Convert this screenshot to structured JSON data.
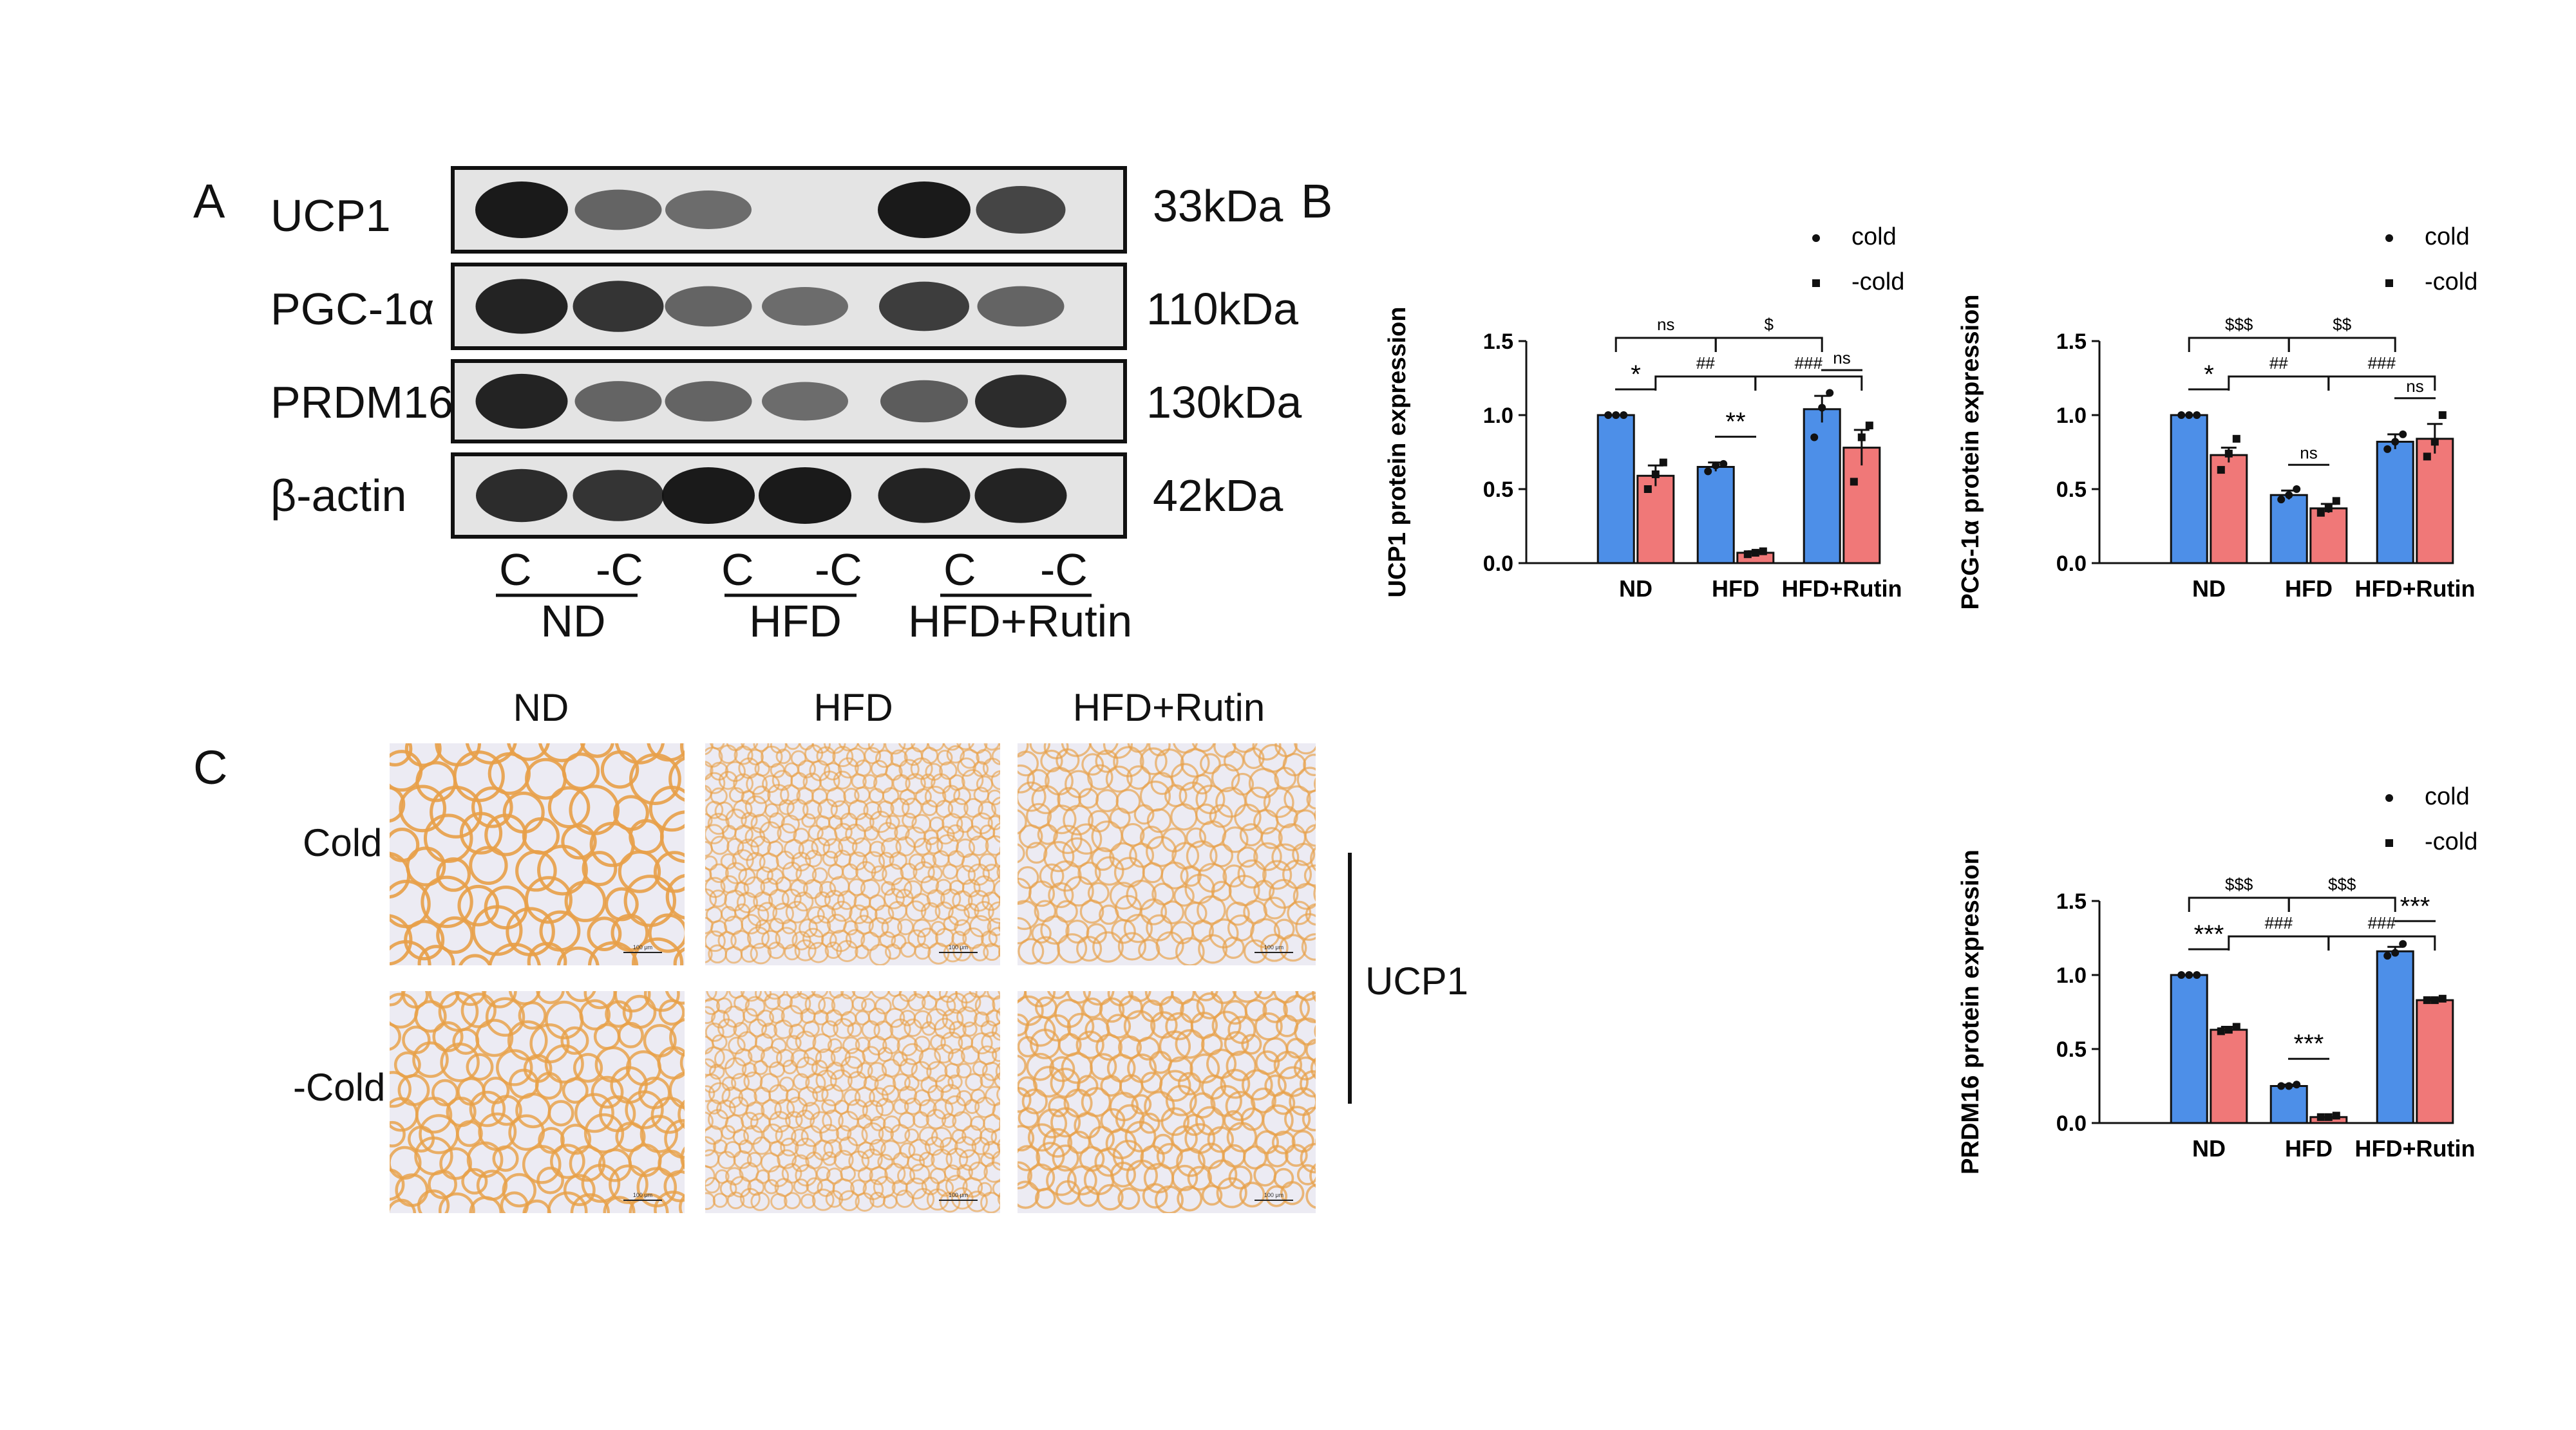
{
  "panels": {
    "a": "A",
    "b": "B",
    "c": "C"
  },
  "blot": {
    "rows": [
      {
        "name": "UCP1",
        "kda": "33kDa",
        "intensities": [
          1.0,
          0.55,
          0.5,
          0.0,
          1.0,
          0.75
        ]
      },
      {
        "name": "PGC-1α",
        "kda": "110kDa",
        "intensities": [
          0.95,
          0.85,
          0.55,
          0.5,
          0.8,
          0.55
        ]
      },
      {
        "name": "PRDM16",
        "kda": "130kDa",
        "intensities": [
          0.95,
          0.55,
          0.55,
          0.5,
          0.6,
          0.9
        ]
      },
      {
        "name": "β-actin",
        "kda": "42kDa",
        "intensities": [
          0.9,
          0.85,
          1.0,
          1.0,
          0.95,
          0.95
        ]
      }
    ],
    "lanes": [
      "C",
      "-C",
      "C",
      "-C",
      "C",
      "-C"
    ],
    "groups": [
      "ND",
      "HFD",
      "HFD+Rutin"
    ]
  },
  "ihc": {
    "cols": [
      "ND",
      "HFD",
      "HFD+Rutin"
    ],
    "rows": [
      "Cold",
      "-Cold"
    ],
    "side_label": "UCP1",
    "scale_label": "100 μm"
  },
  "chart_data": [
    {
      "type": "bar",
      "categories": [
        "ND",
        "HFD",
        "HFD+Rutin"
      ],
      "ylabel": "UCP1 protein expression",
      "ylim": [
        0,
        1.5
      ],
      "yticks": [
        "0.0",
        "0.5",
        "1.0",
        "1.5"
      ],
      "series": [
        {
          "name": "cold",
          "values": [
            1.0,
            0.65,
            1.04
          ],
          "errors": [
            0.0,
            0.03,
            0.09
          ],
          "points": [
            [
              1.0,
              1.0,
              1.0
            ],
            [
              0.62,
              0.66,
              0.67
            ],
            [
              0.85,
              1.05,
              1.15
            ]
          ]
        },
        {
          "name": "-cold",
          "values": [
            0.59,
            0.07,
            0.78
          ],
          "errors": [
            0.07,
            0.01,
            0.12
          ],
          "points": [
            [
              0.5,
              0.6,
              0.68
            ],
            [
              0.06,
              0.07,
              0.08
            ],
            [
              0.55,
              0.85,
              0.93
            ]
          ]
        }
      ],
      "within_labels": [
        "*",
        "**",
        "ns"
      ],
      "between_top": [
        "ns",
        "$"
      ],
      "between_mid": [
        "##",
        "###"
      ]
    },
    {
      "type": "bar",
      "categories": [
        "ND",
        "HFD",
        "HFD+Rutin"
      ],
      "ylabel": "PCG-1α protein expression",
      "ylim": [
        0,
        1.5
      ],
      "yticks": [
        "0.0",
        "0.5",
        "1.0",
        "1.5"
      ],
      "series": [
        {
          "name": "cold",
          "values": [
            1.0,
            0.46,
            0.82
          ],
          "errors": [
            0.0,
            0.03,
            0.05
          ],
          "points": [
            [
              1.0,
              1.0,
              1.0
            ],
            [
              0.43,
              0.46,
              0.5
            ],
            [
              0.77,
              0.82,
              0.87
            ]
          ]
        },
        {
          "name": "-cold",
          "values": [
            0.73,
            0.37,
            0.84
          ],
          "errors": [
            0.05,
            0.03,
            0.1
          ],
          "points": [
            [
              0.63,
              0.74,
              0.84
            ],
            [
              0.34,
              0.37,
              0.42
            ],
            [
              0.72,
              0.82,
              1.0
            ]
          ]
        }
      ],
      "within_labels": [
        "*",
        "ns",
        "ns"
      ],
      "between_top": [
        "$$$",
        "$$"
      ],
      "between_mid": [
        "##",
        "###"
      ]
    },
    {
      "type": "bar",
      "categories": [
        "ND",
        "HFD",
        "HFD+Rutin"
      ],
      "ylabel": "PRDM16 protein expression",
      "ylim": [
        0,
        1.5
      ],
      "yticks": [
        "0.0",
        "0.5",
        "1.0",
        "1.5"
      ],
      "series": [
        {
          "name": "cold",
          "values": [
            1.0,
            0.25,
            1.16
          ],
          "errors": [
            0.0,
            0.01,
            0.03
          ],
          "points": [
            [
              1.0,
              1.0,
              1.0
            ],
            [
              0.25,
              0.25,
              0.26
            ],
            [
              1.13,
              1.15,
              1.21
            ]
          ]
        },
        {
          "name": "-cold",
          "values": [
            0.63,
            0.04,
            0.83
          ],
          "errors": [
            0.02,
            0.0,
            0.01
          ],
          "points": [
            [
              0.62,
              0.63,
              0.65
            ],
            [
              0.04,
              0.04,
              0.05
            ],
            [
              0.83,
              0.83,
              0.84
            ]
          ]
        }
      ],
      "within_labels": [
        "***",
        "***",
        "***"
      ],
      "between_top": [
        "$$$",
        "$$$"
      ],
      "between_mid": [
        "###",
        "###"
      ]
    }
  ],
  "colors": {
    "cold": "#4d8fe8",
    "nocold": "#f07878",
    "stain": "#e8a048",
    "bg": "#ecebf3"
  }
}
